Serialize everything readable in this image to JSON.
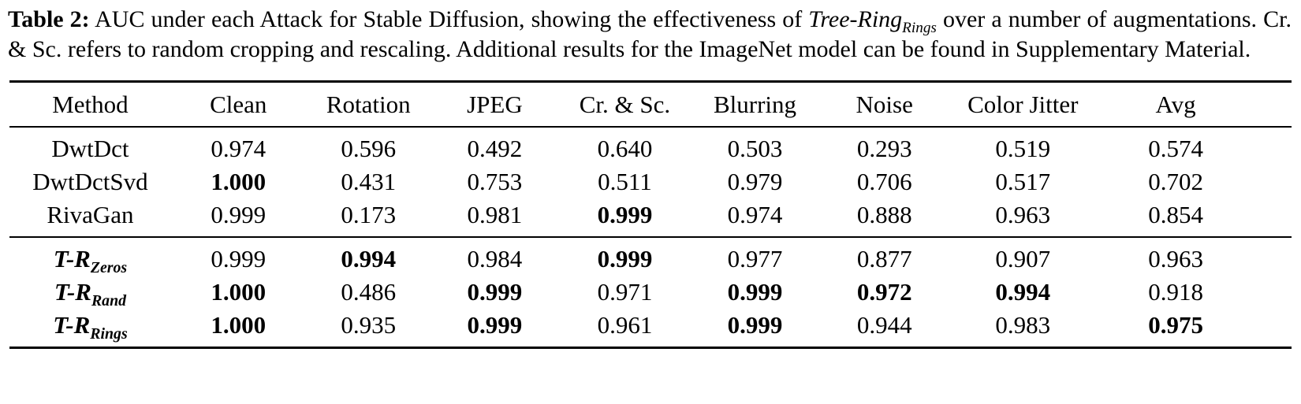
{
  "caption": {
    "label": "Table 2:",
    "before_term": " AUC under each Attack for Stable Diffusion, showing the effectiveness of ",
    "term": "Tree-Ring",
    "term_sub": "Rings",
    "after_term": " over a number of augmentations. Cr. & Sc. refers to random cropping and rescaling. Additional results for the ImageNet model can be found in Supplementary Material."
  },
  "table": {
    "headers": [
      "Method",
      "Clean",
      "Rotation",
      "JPEG",
      "Cr. & Sc.",
      "Blurring",
      "Noise",
      "Color Jitter",
      "Avg"
    ],
    "groups": [
      {
        "rows": [
          {
            "method": {
              "name": "DwtDct",
              "sub": "",
              "bold_italic": false
            },
            "cells": [
              {
                "v": "0.974",
                "b": false
              },
              {
                "v": "0.596",
                "b": false
              },
              {
                "v": "0.492",
                "b": false
              },
              {
                "v": "0.640",
                "b": false
              },
              {
                "v": "0.503",
                "b": false
              },
              {
                "v": "0.293",
                "b": false
              },
              {
                "v": "0.519",
                "b": false
              },
              {
                "v": "0.574",
                "b": false
              }
            ]
          },
          {
            "method": {
              "name": "DwtDctSvd",
              "sub": "",
              "bold_italic": false
            },
            "cells": [
              {
                "v": "1.000",
                "b": true
              },
              {
                "v": "0.431",
                "b": false
              },
              {
                "v": "0.753",
                "b": false
              },
              {
                "v": "0.511",
                "b": false
              },
              {
                "v": "0.979",
                "b": false
              },
              {
                "v": "0.706",
                "b": false
              },
              {
                "v": "0.517",
                "b": false
              },
              {
                "v": "0.702",
                "b": false
              }
            ]
          },
          {
            "method": {
              "name": "RivaGan",
              "sub": "",
              "bold_italic": false
            },
            "cells": [
              {
                "v": "0.999",
                "b": false
              },
              {
                "v": "0.173",
                "b": false
              },
              {
                "v": "0.981",
                "b": false
              },
              {
                "v": "0.999",
                "b": true
              },
              {
                "v": "0.974",
                "b": false
              },
              {
                "v": "0.888",
                "b": false
              },
              {
                "v": "0.963",
                "b": false
              },
              {
                "v": "0.854",
                "b": false
              }
            ]
          }
        ]
      },
      {
        "rows": [
          {
            "method": {
              "name": "T-R",
              "sub": "Zeros",
              "bold_italic": true
            },
            "cells": [
              {
                "v": "0.999",
                "b": false
              },
              {
                "v": "0.994",
                "b": true
              },
              {
                "v": "0.984",
                "b": false
              },
              {
                "v": "0.999",
                "b": true
              },
              {
                "v": "0.977",
                "b": false
              },
              {
                "v": "0.877",
                "b": false
              },
              {
                "v": "0.907",
                "b": false
              },
              {
                "v": "0.963",
                "b": false
              }
            ]
          },
          {
            "method": {
              "name": "T-R",
              "sub": "Rand",
              "bold_italic": true
            },
            "cells": [
              {
                "v": "1.000",
                "b": true
              },
              {
                "v": "0.486",
                "b": false
              },
              {
                "v": "0.999",
                "b": true
              },
              {
                "v": "0.971",
                "b": false
              },
              {
                "v": "0.999",
                "b": true
              },
              {
                "v": "0.972",
                "b": true
              },
              {
                "v": "0.994",
                "b": true
              },
              {
                "v": "0.918",
                "b": false
              }
            ]
          },
          {
            "method": {
              "name": "T-R",
              "sub": "Rings",
              "bold_italic": true
            },
            "cells": [
              {
                "v": "1.000",
                "b": true
              },
              {
                "v": "0.935",
                "b": false
              },
              {
                "v": "0.999",
                "b": true
              },
              {
                "v": "0.961",
                "b": false
              },
              {
                "v": "0.999",
                "b": true
              },
              {
                "v": "0.944",
                "b": false
              },
              {
                "v": "0.983",
                "b": false
              },
              {
                "v": "0.975",
                "b": true
              }
            ]
          }
        ]
      }
    ]
  }
}
